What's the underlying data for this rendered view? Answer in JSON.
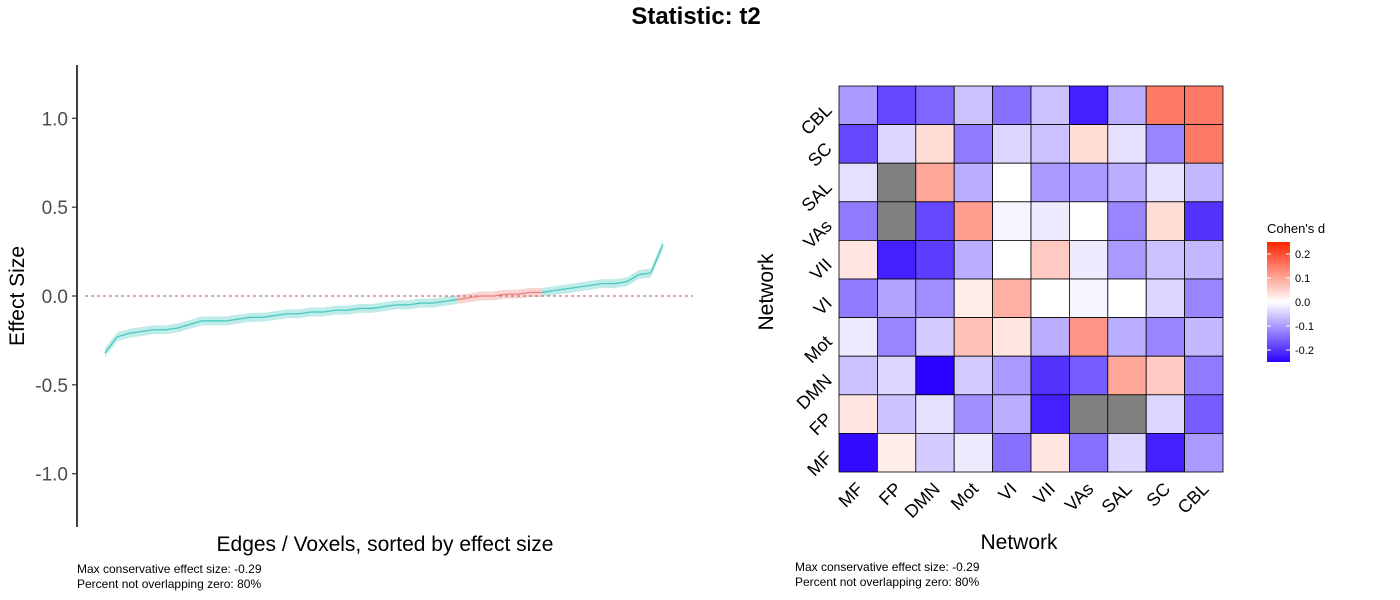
{
  "title": "Statistic: t2",
  "chart_data": [
    {
      "type": "line",
      "panel": "left",
      "xlabel": "Edges / Voxels, sorted by effect size",
      "ylabel": "Effect Size",
      "ylim": [
        -1.3,
        1.3
      ],
      "yticks": [
        1.0,
        0.5,
        0.0,
        -0.5,
        -1.0
      ],
      "ytick_labels": [
        "1.0",
        "0.5",
        "0.0",
        "-0.5",
        "-1.0"
      ],
      "reference_line": 0,
      "ci_halfwidth": 0.025,
      "colors": {
        "not_overlapping": "#48c9c0",
        "overlapping": "#f08080",
        "ref_line": "#c0504d"
      },
      "y": [
        -0.32,
        -0.23,
        -0.21,
        -0.2,
        -0.19,
        -0.19,
        -0.18,
        -0.16,
        -0.14,
        -0.14,
        -0.14,
        -0.13,
        -0.12,
        -0.12,
        -0.11,
        -0.1,
        -0.1,
        -0.09,
        -0.09,
        -0.08,
        -0.08,
        -0.07,
        -0.07,
        -0.06,
        -0.05,
        -0.05,
        -0.04,
        -0.04,
        -0.03,
        -0.02,
        -0.01,
        0.0,
        0.0,
        0.01,
        0.01,
        0.02,
        0.02,
        0.03,
        0.04,
        0.05,
        0.06,
        0.07,
        0.07,
        0.08,
        0.12,
        0.13,
        0.29
      ],
      "notes": [
        "Max conservative effect size: -0.29",
        "Percent not overlapping zero: 80%"
      ]
    },
    {
      "type": "heatmap",
      "panel": "right",
      "xlabel": "Network",
      "ylabel": "Network",
      "x_categories": [
        "MF",
        "FP",
        "DMN",
        "Mot",
        "VI",
        "VII",
        "VAs",
        "SAL",
        "SC",
        "CBL"
      ],
      "y_categories_bottom_to_top": [
        "MF",
        "FP",
        "DMN",
        "Mot",
        "VI",
        "VII",
        "VAs",
        "SAL",
        "SC",
        "CBL"
      ],
      "rows_top_to_bottom": [
        [
          -0.1,
          -0.18,
          -0.15,
          -0.06,
          -0.14,
          -0.06,
          -0.22,
          -0.08,
          0.15,
          0.15
        ],
        [
          -0.18,
          -0.04,
          0.04,
          -0.13,
          -0.04,
          -0.06,
          0.04,
          -0.03,
          -0.12,
          0.15
        ],
        [
          -0.03,
          null,
          0.1,
          -0.08,
          0.0,
          -0.1,
          -0.1,
          -0.08,
          -0.03,
          -0.07
        ],
        [
          -0.13,
          null,
          -0.18,
          0.11,
          -0.01,
          -0.02,
          0.0,
          -0.12,
          0.04,
          -0.2
        ],
        [
          0.03,
          -0.22,
          -0.19,
          -0.08,
          0.0,
          0.06,
          -0.02,
          -0.1,
          -0.06,
          -0.07
        ],
        [
          -0.13,
          -0.09,
          -0.11,
          0.02,
          0.09,
          0.0,
          -0.01,
          0.0,
          -0.04,
          -0.12
        ],
        [
          -0.02,
          -0.12,
          -0.05,
          0.07,
          0.03,
          -0.08,
          0.12,
          -0.08,
          -0.12,
          -0.07
        ],
        [
          -0.06,
          -0.04,
          -0.27,
          -0.05,
          -0.1,
          -0.2,
          -0.16,
          0.1,
          0.06,
          -0.13
        ],
        [
          0.03,
          -0.06,
          -0.03,
          -0.11,
          -0.08,
          -0.22,
          null,
          null,
          -0.04,
          -0.16
        ],
        [
          -0.24,
          0.02,
          -0.05,
          -0.02,
          -0.14,
          0.03,
          -0.14,
          -0.04,
          -0.22,
          -0.1
        ]
      ],
      "na_color": "#808080",
      "legend": {
        "title": "Cohen's d",
        "ticks": [
          0.2,
          0.1,
          0.0,
          -0.1,
          -0.2
        ],
        "tick_labels": [
          "0.2",
          "0.1",
          "0.0",
          "-0.1",
          "-0.2"
        ],
        "range": [
          -0.25,
          0.25
        ],
        "low_color": "#2a00ff",
        "mid_color": "#ffffff",
        "high_color": "#ff2200"
      },
      "notes": [
        "Max conservative effect size: -0.29",
        "Percent not overlapping zero: 80%"
      ]
    }
  ]
}
